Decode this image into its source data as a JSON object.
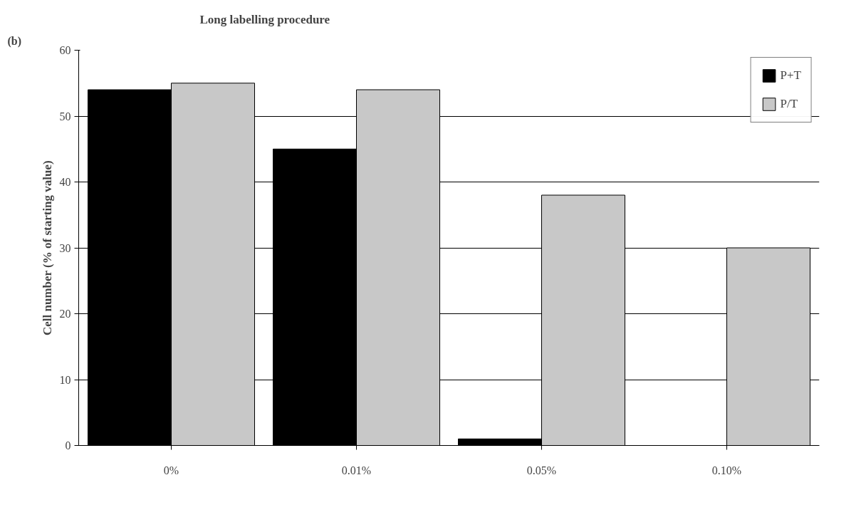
{
  "chart_data": {
    "type": "bar",
    "title": "Long labelling procedure",
    "ylabel": "Cell number (% of starting value)",
    "annotations": [
      "(b)"
    ],
    "categories": [
      "0%",
      "0.01%",
      "0.05%",
      "0.10%"
    ],
    "series": [
      {
        "name": "P+T",
        "color": "#000000",
        "values": [
          54,
          45,
          1,
          0
        ]
      },
      {
        "name": "P/T",
        "color": "#c8c8c8",
        "values": [
          55,
          54,
          38,
          30
        ]
      }
    ],
    "ylim": [
      0,
      60
    ],
    "yticks": [
      0,
      10,
      20,
      30,
      40,
      50,
      60
    ],
    "grid": "y",
    "legend": "top right"
  }
}
